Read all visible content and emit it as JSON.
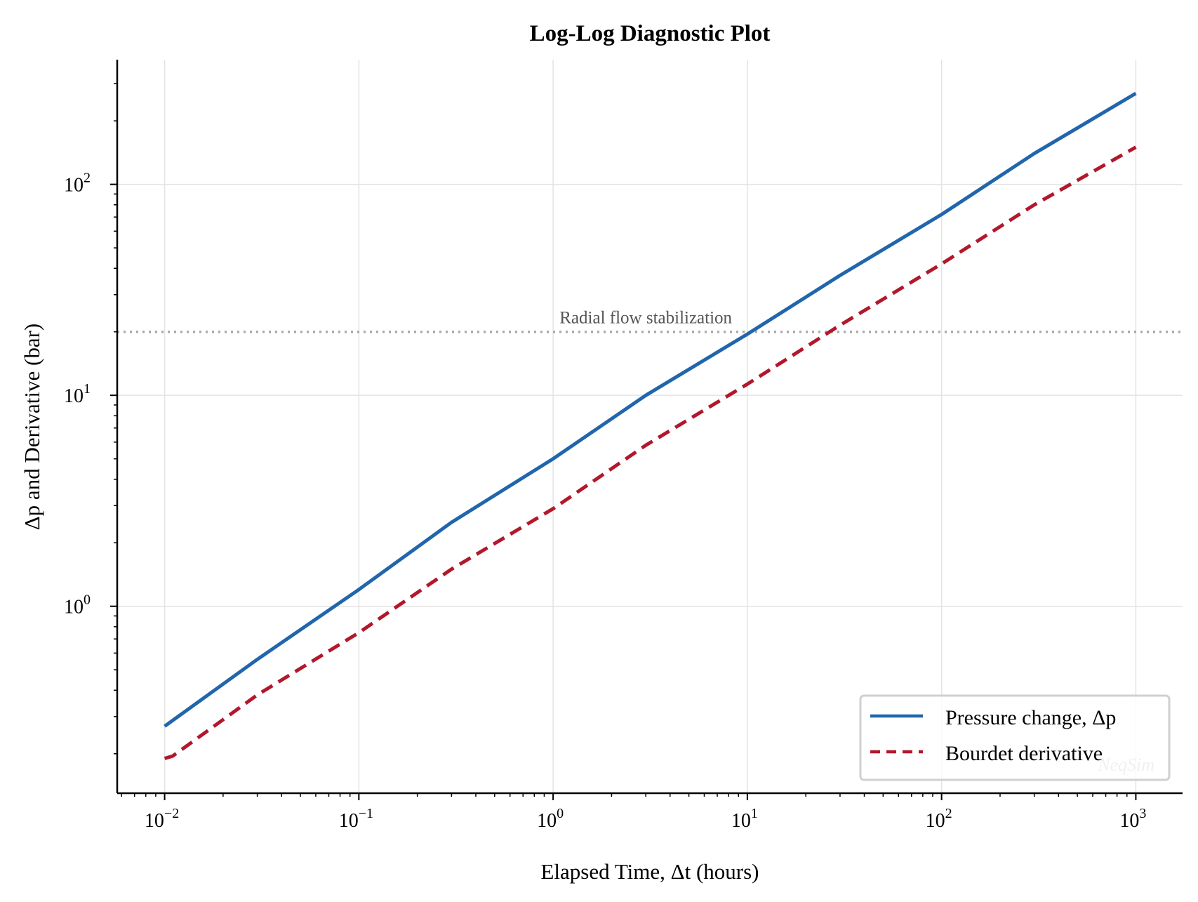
{
  "chart_data": {
    "type": "line",
    "title": "Log-Log Diagnostic Plot",
    "xlabel": "Elapsed Time, Δt (hours)",
    "ylabel": "Δp and Derivative (bar)",
    "xscale": "log",
    "yscale": "log",
    "xlim": [
      0.0057,
      1740
    ],
    "ylim": [
      0.13,
      390
    ],
    "grid": true,
    "x_ticks": [
      {
        "base": "10",
        "exp": "−2",
        "value": 0.01
      },
      {
        "base": "10",
        "exp": "−1",
        "value": 0.1
      },
      {
        "base": "10",
        "exp": "0",
        "value": 1
      },
      {
        "base": "10",
        "exp": "1",
        "value": 10
      },
      {
        "base": "10",
        "exp": "2",
        "value": 100
      },
      {
        "base": "10",
        "exp": "3",
        "value": 1000
      }
    ],
    "y_ticks": [
      {
        "base": "10",
        "exp": "0",
        "value": 1
      },
      {
        "base": "10",
        "exp": "1",
        "value": 10
      },
      {
        "base": "10",
        "exp": "2",
        "value": 100
      }
    ],
    "series": [
      {
        "name": "Pressure change, Δp",
        "color": "#2166ac",
        "style": "solid",
        "x": [
          0.01,
          0.03,
          0.1,
          0.3,
          1,
          3,
          10,
          30,
          100,
          300,
          1000
        ],
        "y": [
          0.27,
          0.56,
          1.2,
          2.5,
          5.0,
          10.0,
          19.5,
          37,
          72,
          140,
          270
        ]
      },
      {
        "name": "Bourdet derivative",
        "color": "#b2182b",
        "style": "dashed",
        "x": [
          0.01,
          0.011,
          0.03,
          0.1,
          0.3,
          1,
          3,
          10,
          30,
          100,
          300,
          1000
        ],
        "y": [
          0.19,
          0.195,
          0.38,
          0.75,
          1.5,
          2.9,
          5.8,
          11.3,
          21.5,
          42,
          80,
          150
        ]
      }
    ],
    "hline": {
      "y": 20,
      "color": "#aaaaaa",
      "style": "dotted",
      "label": "Radial flow stabilization",
      "label_x": 3
    },
    "legend": {
      "placement": "bottom-right"
    },
    "watermark": "NeqSim"
  }
}
